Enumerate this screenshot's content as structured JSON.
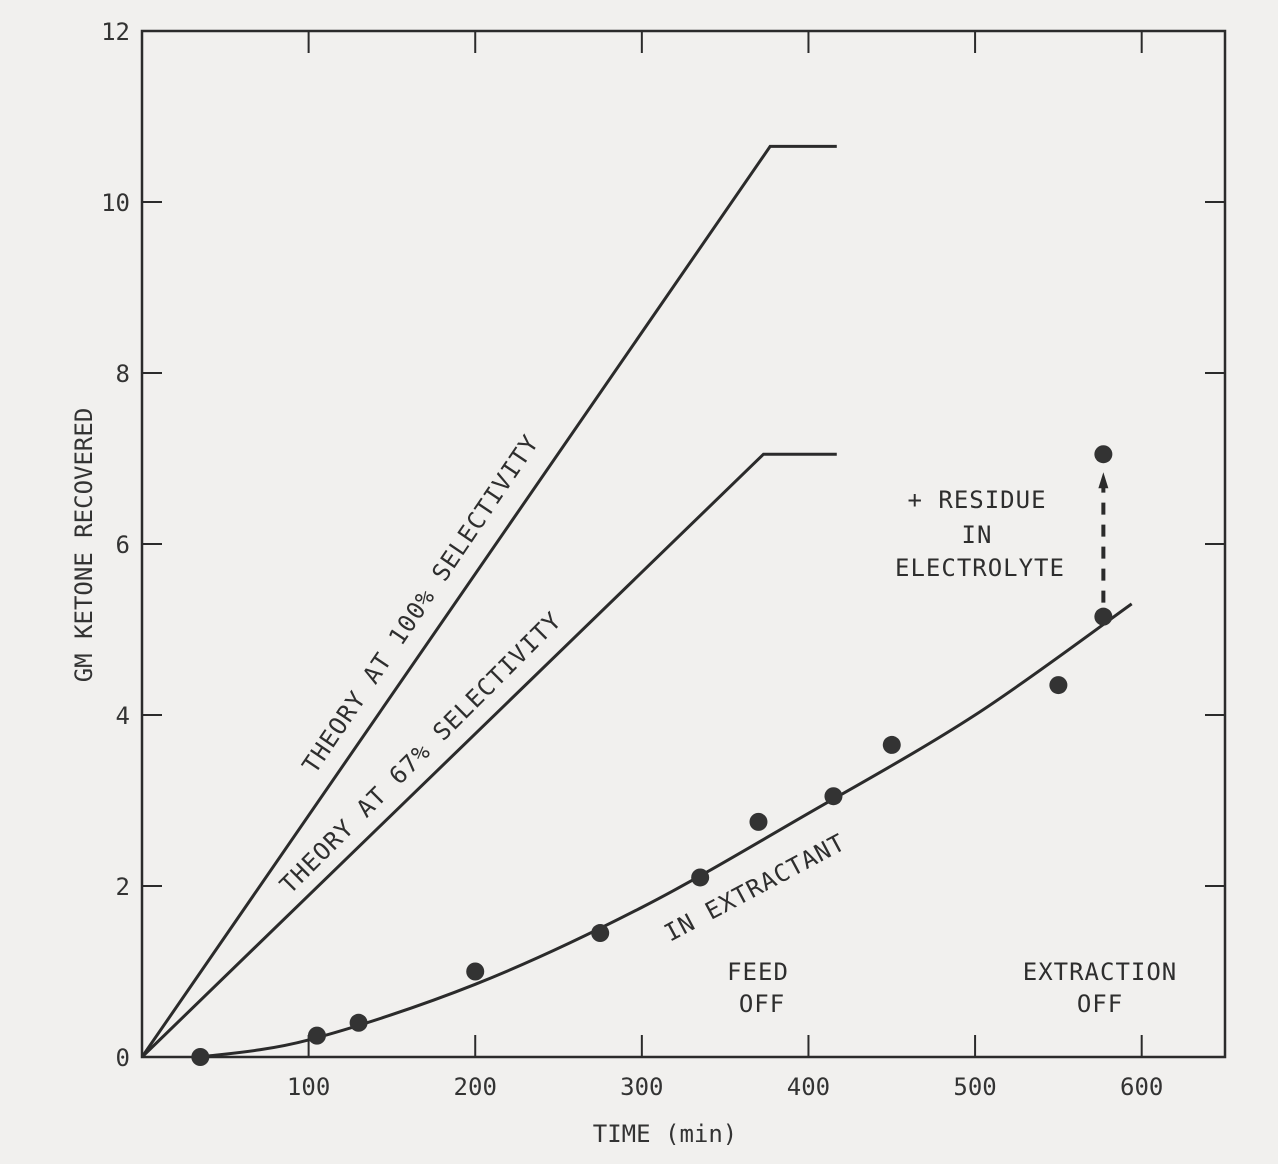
{
  "chart_data": {
    "type": "line",
    "xlabel": "TIME (min)",
    "ylabel": "GM KETONE RECOVERED",
    "xlim": [
      0,
      650
    ],
    "ylim": [
      0,
      12
    ],
    "xticks": [
      100,
      200,
      300,
      400,
      500,
      600
    ],
    "xtick_labels": [
      "100",
      "200",
      "300",
      "400",
      "500",
      "600"
    ],
    "yticks": [
      0,
      2,
      4,
      6,
      8,
      10,
      12
    ],
    "ytick_labels": [
      "0",
      "2",
      "4",
      "6",
      "8",
      "10",
      "12"
    ],
    "grid": false,
    "series": [
      {
        "name": "THEORY AT 100% SELECTIVITY",
        "kind": "line",
        "x": [
          0,
          377,
          417
        ],
        "y": [
          0,
          10.65,
          10.65
        ]
      },
      {
        "name": "THEORY AT 67% SELECTIVITY",
        "kind": "line",
        "x": [
          0,
          373,
          417
        ],
        "y": [
          0,
          7.05,
          7.05
        ]
      },
      {
        "name": "IN EXTRACTANT",
        "kind": "fit-curve",
        "x": [
          35,
          100,
          200,
          300,
          400,
          500,
          594
        ],
        "y": [
          0,
          0.2,
          0.85,
          1.75,
          2.85,
          4.0,
          5.3
        ]
      },
      {
        "name": "IN EXTRACTANT",
        "kind": "scatter",
        "x": [
          35,
          105,
          130,
          200,
          275,
          335,
          370,
          415,
          450,
          550,
          577
        ],
        "y": [
          0,
          0.25,
          0.4,
          1.0,
          1.45,
          2.1,
          2.75,
          3.05,
          3.65,
          4.35,
          5.15
        ]
      },
      {
        "name": "+ RESIDUE IN ELECTROLYTE",
        "kind": "scatter",
        "x": [
          577
        ],
        "y": [
          7.05
        ]
      }
    ],
    "annotations": {
      "theory100": "THEORY AT 100% SELECTIVITY",
      "theory67": "THEORY AT 67% SELECTIVITY",
      "extractant": "IN EXTRACTANT",
      "residue": [
        "+ RESIDUE",
        "IN",
        "ELECTROLYTE"
      ],
      "feed_off": [
        "FEED",
        "OFF"
      ],
      "extraction_off": [
        "EXTRACTION",
        "OFF"
      ]
    },
    "colors": {
      "ink": "#2b2b2b",
      "paper": "#f1f0ee"
    }
  }
}
